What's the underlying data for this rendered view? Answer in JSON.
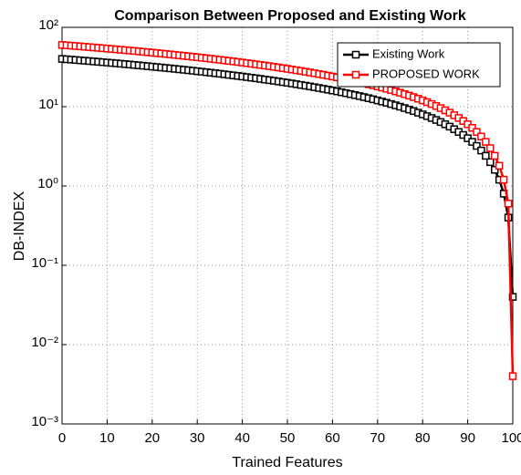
{
  "chart_data": {
    "type": "line",
    "title": "Comparison Between Proposed and Existing Work",
    "xlabel": "Trained Features",
    "ylabel": "DB-INDEX",
    "yscale": "log",
    "grid": true,
    "legend": "upper right",
    "xlim": [
      0,
      100
    ],
    "xticks": [
      0,
      10,
      20,
      30,
      40,
      50,
      60,
      70,
      80,
      90,
      100
    ],
    "ylim": [
      0.001,
      100
    ],
    "yticks": [
      {
        "value": 0.001,
        "label": "10⁻³"
      },
      {
        "value": 0.01,
        "label": "10⁻²"
      },
      {
        "value": 0.1,
        "label": "10⁻¹"
      },
      {
        "value": 1,
        "label": "10⁰"
      },
      {
        "value": 10,
        "label": "10¹"
      },
      {
        "value": 100,
        "label": "10²"
      }
    ],
    "x": [
      0,
      1,
      2,
      3,
      4,
      5,
      6,
      7,
      8,
      9,
      10,
      11,
      12,
      13,
      14,
      15,
      16,
      17,
      18,
      19,
      20,
      21,
      22,
      23,
      24,
      25,
      26,
      27,
      28,
      29,
      30,
      31,
      32,
      33,
      34,
      35,
      36,
      37,
      38,
      39,
      40,
      41,
      42,
      43,
      44,
      45,
      46,
      47,
      48,
      49,
      50,
      51,
      52,
      53,
      54,
      55,
      56,
      57,
      58,
      59,
      60,
      61,
      62,
      63,
      64,
      65,
      66,
      67,
      68,
      69,
      70,
      71,
      72,
      73,
      74,
      75,
      76,
      77,
      78,
      79,
      80,
      81,
      82,
      83,
      84,
      85,
      86,
      87,
      88,
      89,
      90,
      91,
      92,
      93,
      94,
      95,
      96,
      97,
      98,
      99,
      100
    ],
    "series": [
      {
        "name": "Existing Work",
        "color": "#000000",
        "values": [
          40,
          39.6,
          39.2,
          38.8,
          38.4,
          38,
          37.6,
          37.2,
          36.8,
          36.4,
          36,
          35.6,
          35.2,
          34.8,
          34.4,
          34,
          33.6,
          33.2,
          32.8,
          32.4,
          32,
          31.6,
          31.2,
          30.8,
          30.4,
          30,
          29.6,
          29.2,
          28.8,
          28.4,
          28,
          27.6,
          27.2,
          26.8,
          26.4,
          26,
          25.6,
          25.2,
          24.8,
          24.4,
          24,
          23.6,
          23.2,
          22.8,
          22.4,
          22,
          21.6,
          21.2,
          20.8,
          20.4,
          20,
          19.6,
          19.2,
          18.8,
          18.4,
          18,
          17.6,
          17.2,
          16.8,
          16.4,
          16,
          15.6,
          15.2,
          14.8,
          14.4,
          14,
          13.6,
          13.2,
          12.8,
          12.4,
          12,
          11.6,
          11.2,
          10.8,
          10.4,
          10,
          9.6,
          9.2,
          8.8,
          8.4,
          8,
          7.6,
          7.2,
          6.8,
          6.4,
          6,
          5.6,
          5.2,
          4.8,
          4.4,
          4,
          3.6,
          3.2,
          2.8,
          2.4,
          2,
          1.6,
          1.2,
          0.8,
          0.4,
          0.04
        ]
      },
      {
        "name": "PROPOSED WORK",
        "color": "#ff0000",
        "values": [
          60,
          59.4,
          58.8,
          58.2,
          57.6,
          57,
          56.4,
          55.8,
          55.2,
          54.6,
          54,
          53.4,
          52.8,
          52.2,
          51.6,
          51,
          50.4,
          49.8,
          49.2,
          48.6,
          48,
          47.4,
          46.8,
          46.2,
          45.6,
          45,
          44.4,
          43.8,
          43.2,
          42.6,
          42,
          41.4,
          40.8,
          40.2,
          39.6,
          39,
          38.4,
          37.8,
          37.2,
          36.6,
          36,
          35.4,
          34.8,
          34.2,
          33.6,
          33,
          32.4,
          31.8,
          31.2,
          30.6,
          30,
          29.4,
          28.8,
          28.2,
          27.6,
          27,
          26.4,
          25.8,
          25.2,
          24.6,
          24,
          23.4,
          22.8,
          22.2,
          21.6,
          21,
          20.4,
          19.8,
          19.2,
          18.6,
          18,
          17.4,
          16.8,
          16.2,
          15.6,
          15,
          14.4,
          13.8,
          13.2,
          12.6,
          12,
          11.4,
          10.8,
          10.2,
          9.6,
          9,
          8.4,
          7.8,
          7.2,
          6.6,
          6,
          5.4,
          4.8,
          4.2,
          3.6,
          3,
          2.4,
          1.8,
          1.2,
          0.6,
          0.004
        ]
      }
    ]
  }
}
